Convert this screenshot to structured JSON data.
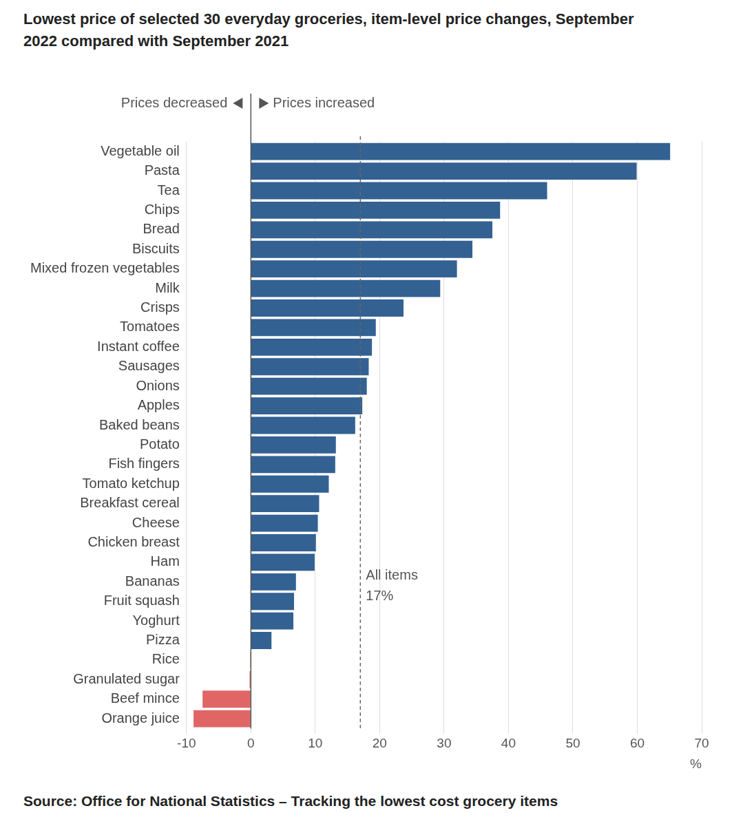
{
  "chart_data": {
    "type": "bar",
    "orientation": "horizontal",
    "title": "Lowest price of selected 30 everyday groceries, item-level price changes, September 2022 compared with September 2021",
    "direction_labels": [
      "Prices decreased",
      "Prices increased"
    ],
    "categories": [
      "Vegetable oil",
      "Pasta",
      "Tea",
      "Chips",
      "Bread",
      "Biscuits",
      "Mixed frozen vegetables",
      "Milk",
      "Crisps",
      "Tomatoes",
      "Instant coffee",
      "Sausages",
      "Onions",
      "Apples",
      "Baked beans",
      "Potato",
      "Fish fingers",
      "Tomato ketchup",
      "Breakfast cereal",
      "Cheese",
      "Chicken breast",
      "Ham",
      "Bananas",
      "Fruit squash",
      "Yoghurt",
      "Pizza",
      "Rice",
      "Granulated sugar",
      "Beef mince",
      "Orange juice"
    ],
    "values": [
      65.1,
      59.9,
      46.0,
      38.7,
      37.5,
      34.4,
      32.0,
      29.4,
      23.7,
      19.4,
      18.8,
      18.3,
      18.0,
      17.3,
      16.2,
      13.2,
      13.1,
      12.1,
      10.6,
      10.4,
      10.1,
      9.9,
      7.0,
      6.7,
      6.6,
      3.2,
      -0.1,
      -0.2,
      -7.5,
      -8.9
    ],
    "colors": [
      "#336192",
      "#336192",
      "#336192",
      "#336192",
      "#336192",
      "#336192",
      "#336192",
      "#336192",
      "#336192",
      "#336192",
      "#336192",
      "#336192",
      "#336192",
      "#336192",
      "#336192",
      "#336192",
      "#336192",
      "#336192",
      "#336192",
      "#336192",
      "#336192",
      "#336192",
      "#336192",
      "#336192",
      "#336192",
      "#336192",
      "#e06666",
      "#e06666",
      "#e06666",
      "#e06666"
    ],
    "xlim": [
      -10,
      70
    ],
    "xticks": [
      -10,
      0,
      10,
      20,
      30,
      40,
      50,
      60,
      70
    ],
    "xlabel": "%",
    "grid": true,
    "annotation": {
      "text": "All items",
      "value": 17,
      "value_label": "17%"
    },
    "source": "Source: Office for National Statistics – Tracking the lowest cost grocery items"
  }
}
